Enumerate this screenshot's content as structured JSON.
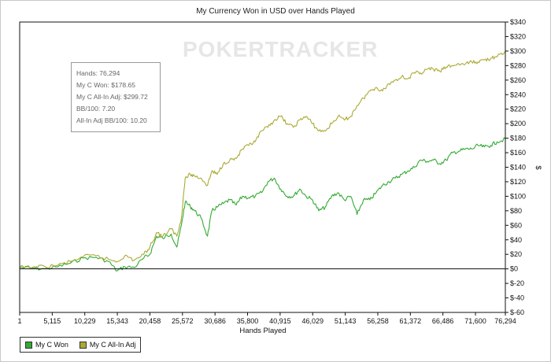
{
  "chart_data": {
    "type": "line",
    "title": "My Currency Won in USD over Hands Played",
    "xlabel": "Hands Played",
    "ylabel": "$",
    "xlim": [
      1,
      76294
    ],
    "ylim": [
      -60,
      340
    ],
    "x_ticks": [
      1,
      5115,
      10229,
      15343,
      20458,
      25572,
      30686,
      35800,
      40915,
      46029,
      51143,
      56258,
      61372,
      66486,
      71600,
      76294
    ],
    "x_tick_labels": [
      "1",
      "5,115",
      "10,229",
      "15,343",
      "20,458",
      "25,572",
      "30,686",
      "35,800",
      "40,915",
      "46,029",
      "51,143",
      "56,258",
      "61,372",
      "66,486",
      "71,600",
      "76,294"
    ],
    "y_ticks": [
      -60,
      -40,
      -20,
      0,
      20,
      40,
      60,
      80,
      100,
      120,
      140,
      160,
      180,
      200,
      220,
      240,
      260,
      280,
      300,
      320,
      340
    ],
    "y_tick_labels": [
      "$-60",
      "$-40",
      "$-20",
      "$0",
      "$20",
      "$40",
      "$60",
      "$80",
      "$100",
      "$120",
      "$140",
      "$160",
      "$180",
      "$200",
      "$220",
      "$240",
      "$260",
      "$280",
      "$300",
      "$320",
      "$340"
    ],
    "legend_position": "bottom-left",
    "series": [
      {
        "name": "My C Won",
        "color": "#33aa33",
        "x": [
          1,
          2000,
          4000,
          6000,
          8000,
          10000,
          12000,
          14000,
          15300,
          16500,
          18000,
          19500,
          20458,
          21500,
          22500,
          23800,
          24700,
          25400,
          26000,
          26800,
          27500,
          28500,
          29500,
          30200,
          31000,
          32000,
          33000,
          34000,
          35000,
          36000,
          37000,
          38000,
          39000,
          40000,
          41000,
          42000,
          43000,
          44000,
          45000,
          46000,
          47000,
          48000,
          49000,
          50000,
          51000,
          52000,
          53000,
          54000,
          55000,
          56000,
          57000,
          58000,
          59000,
          60000,
          61000,
          62000,
          63000,
          64000,
          65000,
          66000,
          67000,
          68000,
          69000,
          70000,
          71000,
          72000,
          73000,
          74000,
          75000,
          76294
        ],
        "values": [
          2,
          1,
          0,
          3,
          8,
          15,
          16,
          10,
          -3,
          3,
          2,
          15,
          20,
          45,
          42,
          48,
          30,
          60,
          92,
          86,
          80,
          70,
          45,
          80,
          85,
          90,
          95,
          88,
          100,
          98,
          100,
          105,
          120,
          125,
          110,
          100,
          100,
          110,
          100,
          95,
          80,
          85,
          100,
          105,
          95,
          100,
          75,
          95,
          95,
          105,
          115,
          120,
          125,
          130,
          135,
          140,
          150,
          148,
          150,
          145,
          150,
          160,
          162,
          165,
          165,
          170,
          168,
          170,
          175,
          178.65
        ]
      },
      {
        "name": "My C All-In Adj",
        "color": "#aaaa33",
        "x": [
          1,
          2000,
          4000,
          6000,
          8000,
          10000,
          12000,
          14000,
          15300,
          16500,
          18000,
          19500,
          20458,
          21500,
          22500,
          23800,
          24700,
          25400,
          26000,
          26800,
          27500,
          28500,
          29500,
          30200,
          31000,
          32000,
          33000,
          34000,
          35000,
          36000,
          37000,
          38000,
          39000,
          40000,
          41000,
          42000,
          43000,
          44000,
          45000,
          46000,
          47000,
          48000,
          49000,
          50000,
          51000,
          52000,
          53000,
          54000,
          55000,
          56000,
          57000,
          58000,
          59000,
          60000,
          61000,
          62000,
          63000,
          64000,
          65000,
          66000,
          67000,
          68000,
          69000,
          70000,
          71000,
          72000,
          73000,
          74000,
          75000,
          76294
        ],
        "values": [
          2,
          2,
          3,
          5,
          10,
          17,
          18,
          13,
          10,
          18,
          12,
          20,
          30,
          50,
          45,
          55,
          45,
          70,
          125,
          130,
          128,
          125,
          115,
          135,
          130,
          145,
          150,
          152,
          165,
          170,
          175,
          190,
          195,
          205,
          210,
          200,
          195,
          205,
          210,
          200,
          190,
          190,
          200,
          210,
          205,
          210,
          225,
          235,
          245,
          250,
          245,
          255,
          260,
          265,
          262,
          270,
          270,
          275,
          275,
          272,
          278,
          280,
          282,
          282,
          285,
          285,
          288,
          290,
          292,
          299.72
        ]
      }
    ]
  },
  "watermark": "POKERTRACKER",
  "tooltip": [
    "Hands: 76,294",
    "My C Won: $178.65",
    "My C All-In Adj: $299.72",
    "BB/100: 7.20",
    "All-In Adj BB/100: 10.20"
  ],
  "legend": [
    {
      "label": "My C Won",
      "color": "#33aa33"
    },
    {
      "label": "My C All-In Adj",
      "color": "#aaaa33"
    }
  ]
}
